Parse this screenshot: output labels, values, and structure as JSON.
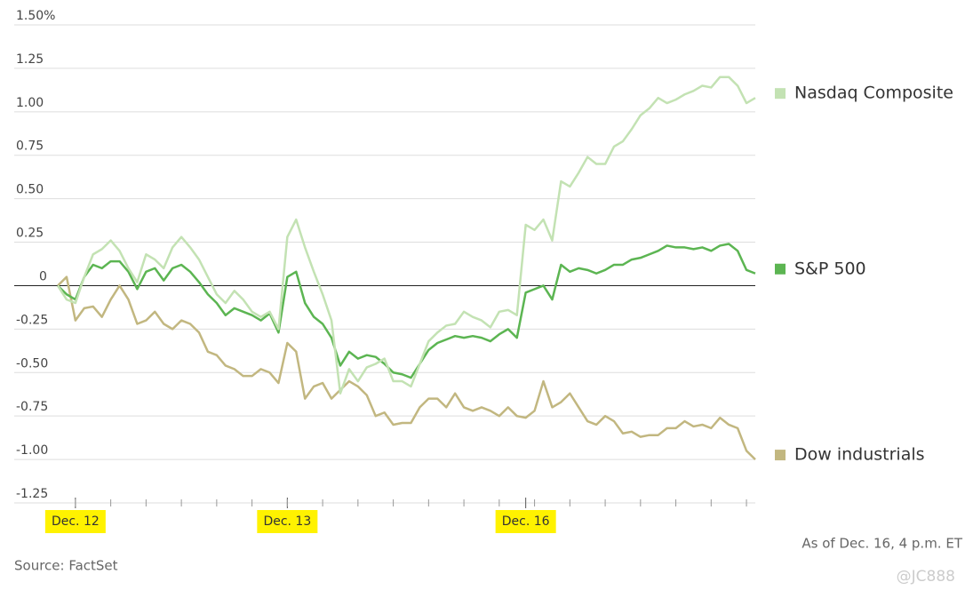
{
  "chart_data": {
    "type": "line",
    "categories": [
      null,
      null,
      "Dec. 12",
      null,
      null,
      null,
      null,
      null,
      null,
      null,
      null,
      null,
      null,
      null,
      null,
      null,
      null,
      null,
      null,
      null,
      null,
      null,
      null,
      null,
      null,
      null,
      "Dec. 13",
      null,
      null,
      null,
      null,
      null,
      null,
      null,
      null,
      null,
      null,
      null,
      null,
      null,
      null,
      null,
      null,
      null,
      null,
      null,
      null,
      null,
      null,
      null,
      null,
      null,
      null,
      "Dec. 16",
      null,
      null,
      null,
      null,
      null,
      null,
      null,
      null,
      null,
      null,
      null,
      null,
      null,
      null,
      null,
      null,
      null,
      null,
      null,
      null,
      null,
      null,
      null,
      null,
      null,
      null
    ],
    "series": [
      {
        "name": "Nasdaq Composite",
        "color": "#c3e2b3",
        "values": [
          0,
          -0.08,
          -0.1,
          0.05,
          0.18,
          0.21,
          0.26,
          0.2,
          0.1,
          0.02,
          0.18,
          0.15,
          0.1,
          0.22,
          0.28,
          0.22,
          0.15,
          0.05,
          -0.05,
          -0.1,
          -0.03,
          -0.08,
          -0.15,
          -0.18,
          -0.15,
          -0.25,
          0.28,
          0.38,
          0.22,
          0.08,
          -0.05,
          -0.2,
          -0.62,
          -0.48,
          -0.55,
          -0.47,
          -0.45,
          -0.42,
          -0.55,
          -0.55,
          -0.58,
          -0.45,
          -0.32,
          -0.27,
          -0.23,
          -0.22,
          -0.15,
          -0.18,
          -0.2,
          -0.24,
          -0.15,
          -0.14,
          -0.17,
          0.35,
          0.32,
          0.38,
          0.26,
          0.6,
          0.57,
          0.65,
          0.74,
          0.7,
          0.7,
          0.8,
          0.83,
          0.9,
          0.98,
          1.02,
          1.08,
          1.05,
          1.07,
          1.1,
          1.12,
          1.15,
          1.14,
          1.2,
          1.2,
          1.15,
          1.05,
          1.08
        ]
      },
      {
        "name": "S&P 500",
        "color": "#5cb552",
        "values": [
          0,
          -0.05,
          -0.08,
          0.05,
          0.12,
          0.1,
          0.14,
          0.14,
          0.08,
          -0.02,
          0.08,
          0.1,
          0.03,
          0.1,
          0.12,
          0.08,
          0.02,
          -0.05,
          -0.1,
          -0.17,
          -0.13,
          -0.15,
          -0.17,
          -0.2,
          -0.16,
          -0.27,
          0.05,
          0.08,
          -0.1,
          -0.18,
          -0.22,
          -0.3,
          -0.46,
          -0.38,
          -0.42,
          -0.4,
          -0.41,
          -0.45,
          -0.5,
          -0.51,
          -0.53,
          -0.45,
          -0.37,
          -0.33,
          -0.31,
          -0.29,
          -0.3,
          -0.29,
          -0.3,
          -0.32,
          -0.28,
          -0.25,
          -0.3,
          -0.04,
          -0.02,
          0,
          -0.08,
          0.12,
          0.08,
          0.1,
          0.09,
          0.07,
          0.09,
          0.12,
          0.12,
          0.15,
          0.16,
          0.18,
          0.2,
          0.23,
          0.22,
          0.22,
          0.21,
          0.22,
          0.2,
          0.23,
          0.24,
          0.2,
          0.09,
          0.07
        ]
      },
      {
        "name": "Dow industrials",
        "color": "#c2b780",
        "values": [
          0,
          0.05,
          -0.2,
          -0.13,
          -0.12,
          -0.18,
          -0.08,
          0,
          -0.08,
          -0.22,
          -0.2,
          -0.15,
          -0.22,
          -0.25,
          -0.2,
          -0.22,
          -0.27,
          -0.38,
          -0.4,
          -0.46,
          -0.48,
          -0.52,
          -0.52,
          -0.48,
          -0.5,
          -0.56,
          -0.33,
          -0.38,
          -0.65,
          -0.58,
          -0.56,
          -0.65,
          -0.6,
          -0.55,
          -0.58,
          -0.63,
          -0.75,
          -0.73,
          -0.8,
          -0.79,
          -0.79,
          -0.7,
          -0.65,
          -0.65,
          -0.7,
          -0.62,
          -0.7,
          -0.72,
          -0.7,
          -0.72,
          -0.75,
          -0.7,
          -0.75,
          -0.76,
          -0.72,
          -0.55,
          -0.7,
          -0.67,
          -0.62,
          -0.7,
          -0.78,
          -0.8,
          -0.75,
          -0.78,
          -0.85,
          -0.84,
          -0.87,
          -0.86,
          -0.86,
          -0.82,
          -0.82,
          -0.78,
          -0.81,
          -0.8,
          -0.82,
          -0.76,
          -0.8,
          -0.82,
          -0.95,
          -1
        ]
      }
    ],
    "ylim": [
      -1.25,
      1.5
    ],
    "yticks": [
      {
        "value": 1.5,
        "label": "1.50%"
      },
      1.25,
      {
        "value": 1,
        "label": "1.00"
      },
      0.75,
      {
        "value": 0.5,
        "label": "0.50"
      },
      0.25,
      0,
      -0.25,
      {
        "value": -0.5,
        "label": "-0.50"
      },
      -0.75,
      {
        "value": -1,
        "label": "-1.00"
      },
      -1.25
    ],
    "grid": true,
    "source": "Source: FactSet",
    "note": "As of Dec. 16, 4 p.m. ET",
    "watermark": "@JC888"
  }
}
